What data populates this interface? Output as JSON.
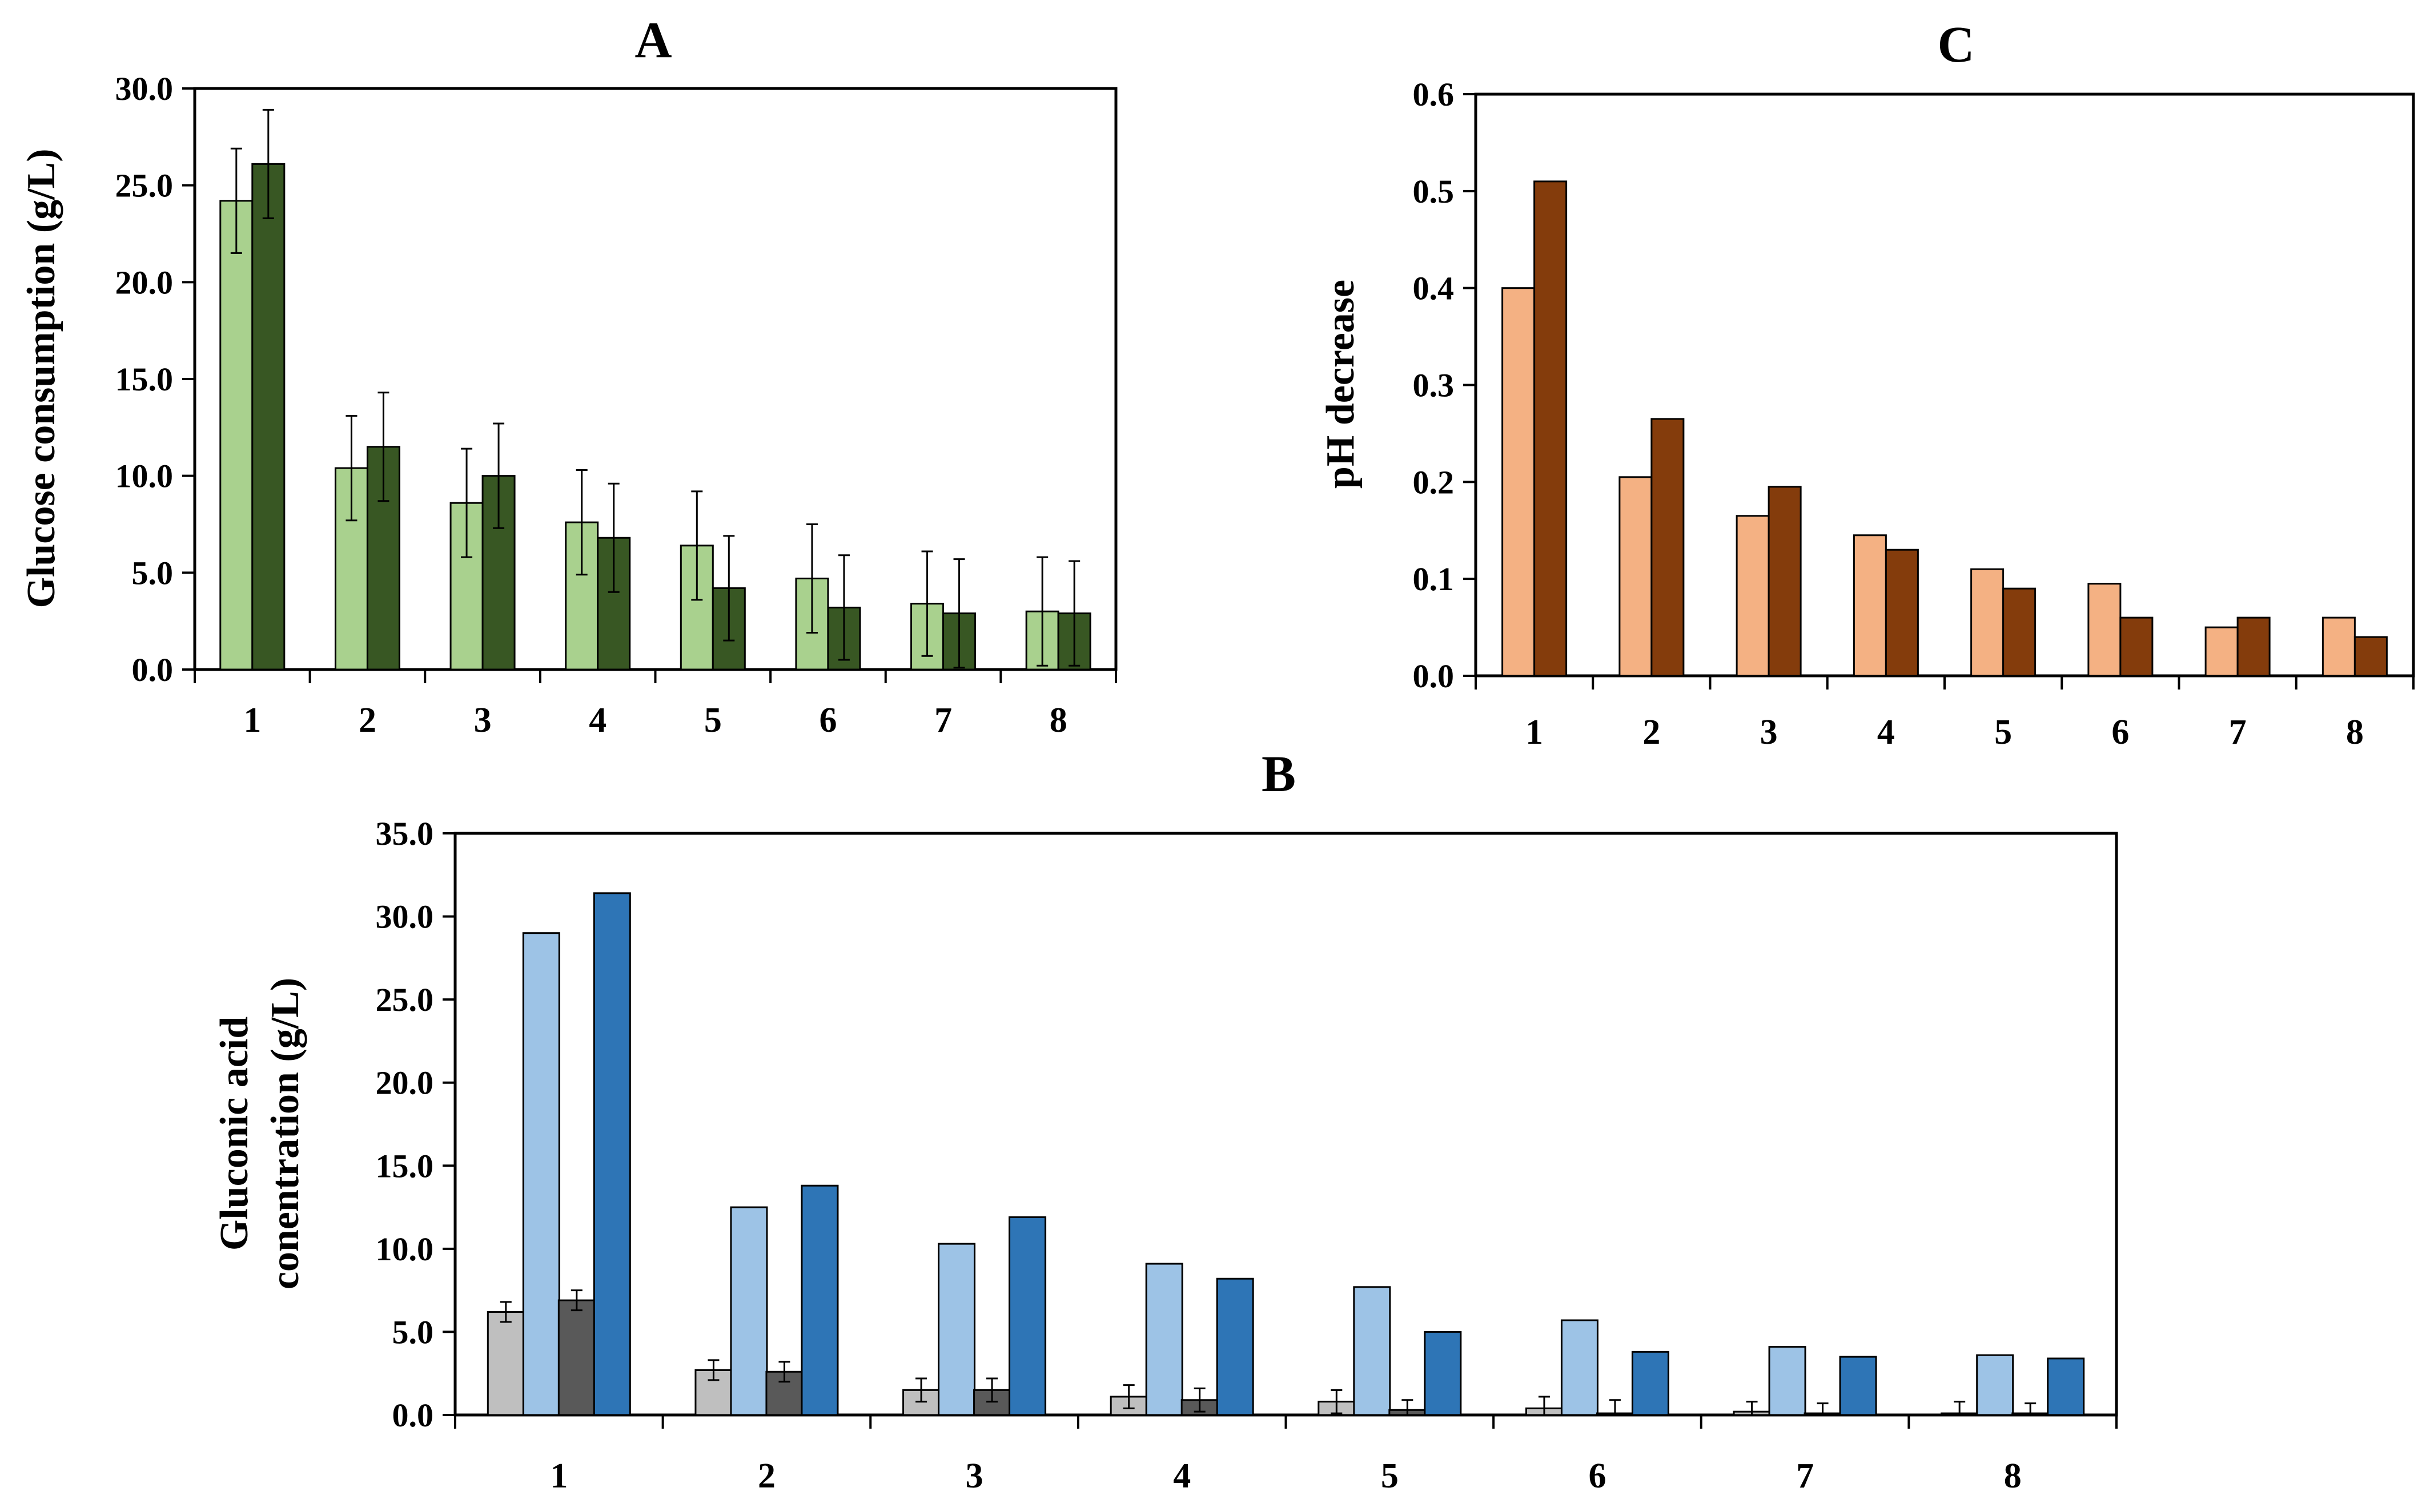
{
  "chart_data": [
    {
      "id": "A",
      "type": "bar",
      "title": "A",
      "xlabel": "",
      "ylabel": "Glucose consumption (g/L)",
      "ylim": [
        0,
        30
      ],
      "ytick_labels": [
        "0.0",
        "5.0",
        "10.0",
        "15.0",
        "20.0",
        "25.0",
        "30.0"
      ],
      "categories": [
        "1",
        "2",
        "3",
        "4",
        "5",
        "6",
        "7",
        "8"
      ],
      "grid": false,
      "legend": "none",
      "series": [
        {
          "color": "#a9d18e",
          "values": [
            24.2,
            10.4,
            8.6,
            7.6,
            6.4,
            4.7,
            3.4,
            3.0
          ],
          "errors": [
            2.7,
            2.7,
            2.8,
            2.7,
            2.8,
            2.8,
            2.7,
            2.8
          ]
        },
        {
          "color": "#385723",
          "values": [
            26.1,
            11.5,
            10.0,
            6.8,
            4.2,
            3.2,
            2.9,
            2.9
          ],
          "errors": [
            2.8,
            2.8,
            2.7,
            2.8,
            2.7,
            2.7,
            2.8,
            2.7
          ]
        }
      ]
    },
    {
      "id": "C",
      "type": "bar",
      "title": "C",
      "xlabel": "",
      "ylabel": "pH decrease",
      "ylim": [
        0,
        0.6
      ],
      "ytick_labels": [
        "0.0",
        "0.1",
        "0.2",
        "0.3",
        "0.4",
        "0.5",
        "0.6"
      ],
      "categories": [
        "1",
        "2",
        "3",
        "4",
        "5",
        "6",
        "7",
        "8"
      ],
      "grid": false,
      "legend": "none",
      "series": [
        {
          "color": "#f4b183",
          "values": [
            0.4,
            0.205,
            0.165,
            0.145,
            0.11,
            0.095,
            0.05,
            0.06
          ]
        },
        {
          "color": "#843c0c",
          "values": [
            0.51,
            0.265,
            0.195,
            0.13,
            0.09,
            0.06,
            0.06,
            0.04
          ]
        }
      ]
    },
    {
      "id": "B",
      "type": "bar",
      "title": "B",
      "xlabel": "",
      "ylabel_lines": [
        "Gluconic acid",
        "conentration (g/L)"
      ],
      "ylim": [
        0,
        35
      ],
      "ytick_labels": [
        "0.0",
        "5.0",
        "10.0",
        "15.0",
        "20.0",
        "25.0",
        "30.0",
        "35.0"
      ],
      "categories": [
        "1",
        "2",
        "3",
        "4",
        "5",
        "6",
        "7",
        "8"
      ],
      "grid": false,
      "legend": "none",
      "series": [
        {
          "color": "#bfbfbf",
          "values": [
            6.2,
            2.7,
            1.5,
            1.1,
            0.8,
            0.4,
            0.2,
            0.1
          ],
          "errors": [
            0.6,
            0.6,
            0.7,
            0.7,
            0.7,
            0.7,
            0.6,
            0.7
          ]
        },
        {
          "color": "#9dc3e6",
          "values": [
            29.0,
            12.5,
            10.3,
            9.1,
            7.7,
            5.7,
            4.1,
            3.6
          ]
        },
        {
          "color": "#595959",
          "values": [
            6.9,
            2.6,
            1.5,
            0.9,
            0.3,
            0.1,
            0.1,
            0.1
          ],
          "errors": [
            0.6,
            0.6,
            0.7,
            0.7,
            0.6,
            0.8,
            0.6,
            0.6
          ]
        },
        {
          "color": "#2e75b6",
          "values": [
            31.4,
            13.8,
            11.9,
            8.2,
            5.0,
            3.8,
            3.5,
            3.4
          ]
        }
      ]
    }
  ]
}
